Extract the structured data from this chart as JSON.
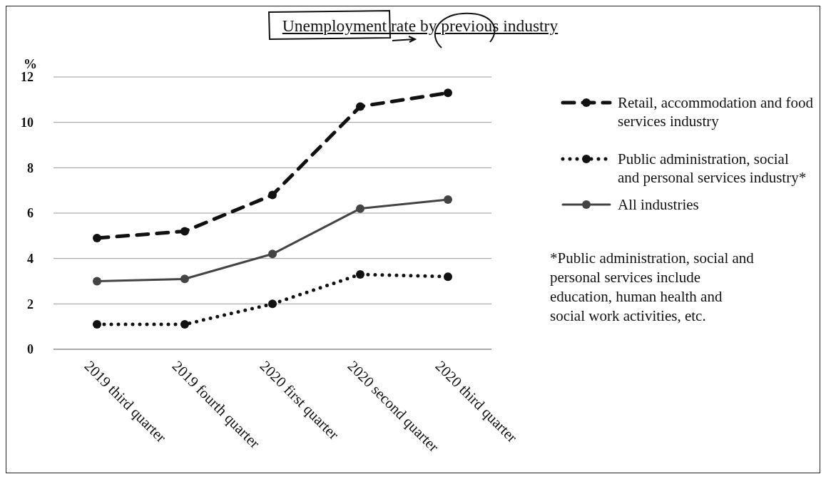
{
  "chart_data": {
    "type": "line",
    "title": "Unemployment rate by previous industry",
    "ylabel": "%",
    "categories": [
      "2019 third quarter",
      "2019 fourth quarter",
      "2020 first quarter",
      "2020 second quarter",
      "2020 third quarter"
    ],
    "series": [
      {
        "name": "Retail, accommodation and food services industry",
        "color": "#111111",
        "line_style": "dashed",
        "values": [
          4.9,
          5.2,
          6.8,
          10.7,
          11.3
        ]
      },
      {
        "name": "Public administration, social and personal services industry*",
        "color": "#111111",
        "line_style": "dotted",
        "values": [
          1.1,
          1.1,
          2.0,
          3.3,
          3.2
        ]
      },
      {
        "name": "All industries",
        "color": "#444444",
        "line_style": "solid",
        "values": [
          3.0,
          3.1,
          4.2,
          6.2,
          6.6
        ]
      }
    ],
    "ylim": [
      0,
      12
    ],
    "yticks": [
      0,
      2,
      4,
      6,
      8,
      10,
      12
    ],
    "grid": "y",
    "marker": "circle",
    "legend": "right",
    "annotations": [
      "*Public administration, social and personal services include education, human health and social work activities, etc."
    ]
  }
}
